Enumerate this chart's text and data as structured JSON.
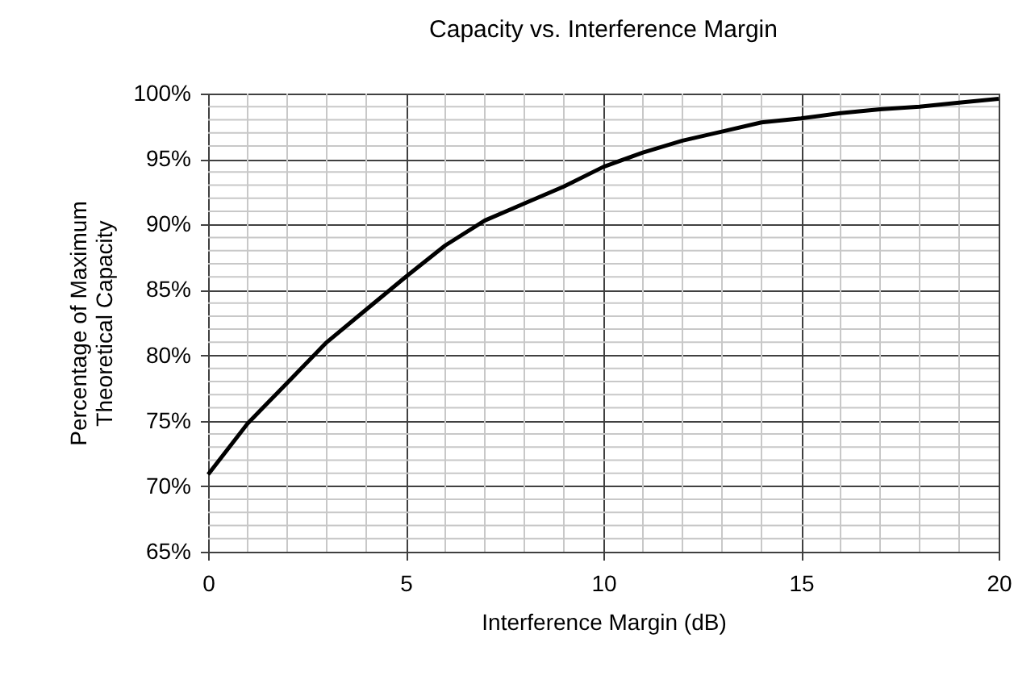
{
  "chart_data": {
    "type": "line",
    "title": "Capacity vs. Interference Margin",
    "xlabel": "Interference Margin (dB)",
    "ylabel": "Percentage of Maximum\nTheoretical Capacity",
    "x": [
      0,
      1,
      2,
      3,
      4,
      5,
      6,
      7,
      8,
      9,
      10,
      11,
      12,
      13,
      14,
      15,
      16,
      17,
      18,
      19,
      20
    ],
    "series": [
      {
        "color": "#000000",
        "values": [
          70.9,
          74.8,
          77.9,
          81.0,
          83.5,
          86.0,
          88.4,
          90.3,
          91.6,
          92.9,
          94.4,
          95.5,
          96.4,
          97.1,
          97.8,
          98.1,
          98.5,
          98.8,
          99.0,
          99.3,
          99.6
        ]
      }
    ],
    "xlim": [
      0,
      20
    ],
    "xticks": [
      0,
      5,
      10,
      15,
      20
    ],
    "ylim": [
      65,
      100
    ],
    "yticks": [
      {
        "value": 65,
        "label": "65%"
      },
      {
        "value": 70,
        "label": "70%"
      },
      {
        "value": 75,
        "label": "75%"
      },
      {
        "value": 80,
        "label": "80%"
      },
      {
        "value": 85,
        "label": "85%"
      },
      {
        "value": 90,
        "label": "90%"
      },
      {
        "value": 95,
        "label": "95%"
      },
      {
        "value": 100,
        "label": "100%"
      }
    ],
    "grid": true,
    "marker": "none",
    "line_style": "solid"
  }
}
